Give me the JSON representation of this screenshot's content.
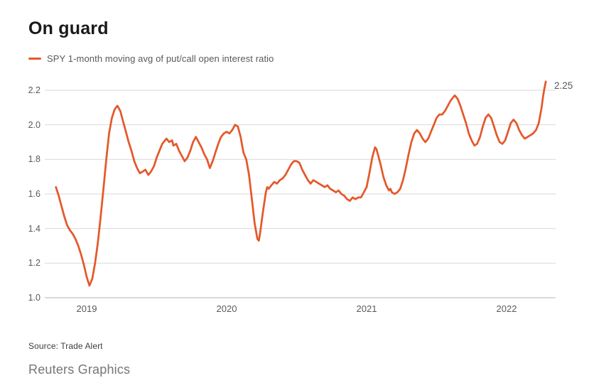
{
  "chart": {
    "title": "On guard",
    "legend": "SPY 1-month moving avg of put/call open interest ratio",
    "end_label": "2.25",
    "source": "Source: Trade Alert",
    "credit": "Reuters Graphics",
    "line_color": "#e4592b",
    "grid_color": "#d9d9d9",
    "axis_color": "#b5b5b5",
    "tick_color": "#595959"
  },
  "chart_data": {
    "type": "line",
    "title": "On guard",
    "series_name": "SPY 1-month moving avg of put/call open interest ratio",
    "xlabel": "",
    "ylabel": "",
    "x_ticks": [
      2019,
      2020,
      2021,
      2022
    ],
    "y_ticks": [
      2.2,
      2.0,
      1.8,
      1.6,
      1.4,
      1.2,
      1.0
    ],
    "ylim": [
      1.0,
      2.2
    ],
    "xlim": [
      2018.78,
      2022.35
    ],
    "grid": "horizontal",
    "legend_position": "top-left",
    "last_value_annotation": 2.25,
    "points": [
      [
        2018.78,
        1.64
      ],
      [
        2018.8,
        1.59
      ],
      [
        2018.82,
        1.53
      ],
      [
        2018.84,
        1.47
      ],
      [
        2018.86,
        1.42
      ],
      [
        2018.88,
        1.39
      ],
      [
        2018.9,
        1.37
      ],
      [
        2018.92,
        1.34
      ],
      [
        2018.94,
        1.3
      ],
      [
        2018.96,
        1.25
      ],
      [
        2018.98,
        1.19
      ],
      [
        2019.0,
        1.12
      ],
      [
        2019.02,
        1.07
      ],
      [
        2019.04,
        1.11
      ],
      [
        2019.06,
        1.2
      ],
      [
        2019.08,
        1.32
      ],
      [
        2019.1,
        1.47
      ],
      [
        2019.12,
        1.63
      ],
      [
        2019.14,
        1.8
      ],
      [
        2019.16,
        1.95
      ],
      [
        2019.18,
        2.04
      ],
      [
        2019.2,
        2.09
      ],
      [
        2019.22,
        2.11
      ],
      [
        2019.24,
        2.08
      ],
      [
        2019.26,
        2.02
      ],
      [
        2019.28,
        1.96
      ],
      [
        2019.3,
        1.9
      ],
      [
        2019.32,
        1.85
      ],
      [
        2019.34,
        1.79
      ],
      [
        2019.36,
        1.75
      ],
      [
        2019.38,
        1.72
      ],
      [
        2019.4,
        1.73
      ],
      [
        2019.42,
        1.74
      ],
      [
        2019.44,
        1.71
      ],
      [
        2019.46,
        1.73
      ],
      [
        2019.48,
        1.76
      ],
      [
        2019.5,
        1.81
      ],
      [
        2019.52,
        1.85
      ],
      [
        2019.54,
        1.89
      ],
      [
        2019.56,
        1.91
      ],
      [
        2019.57,
        1.92
      ],
      [
        2019.59,
        1.9
      ],
      [
        2019.61,
        1.91
      ],
      [
        2019.62,
        1.88
      ],
      [
        2019.64,
        1.89
      ],
      [
        2019.66,
        1.85
      ],
      [
        2019.68,
        1.82
      ],
      [
        2019.7,
        1.79
      ],
      [
        2019.72,
        1.81
      ],
      [
        2019.74,
        1.85
      ],
      [
        2019.76,
        1.9
      ],
      [
        2019.78,
        1.93
      ],
      [
        2019.8,
        1.9
      ],
      [
        2019.82,
        1.87
      ],
      [
        2019.84,
        1.83
      ],
      [
        2019.86,
        1.8
      ],
      [
        2019.88,
        1.75
      ],
      [
        2019.9,
        1.79
      ],
      [
        2019.92,
        1.84
      ],
      [
        2019.94,
        1.89
      ],
      [
        2019.96,
        1.93
      ],
      [
        2019.98,
        1.95
      ],
      [
        2020.0,
        1.96
      ],
      [
        2020.02,
        1.95
      ],
      [
        2020.04,
        1.97
      ],
      [
        2020.06,
        2.0
      ],
      [
        2020.08,
        1.99
      ],
      [
        2020.1,
        1.93
      ],
      [
        2020.12,
        1.84
      ],
      [
        2020.14,
        1.8
      ],
      [
        2020.16,
        1.71
      ],
      [
        2020.18,
        1.57
      ],
      [
        2020.2,
        1.43
      ],
      [
        2020.22,
        1.34
      ],
      [
        2020.23,
        1.33
      ],
      [
        2020.24,
        1.38
      ],
      [
        2020.26,
        1.5
      ],
      [
        2020.28,
        1.61
      ],
      [
        2020.29,
        1.64
      ],
      [
        2020.3,
        1.63
      ],
      [
        2020.32,
        1.65
      ],
      [
        2020.34,
        1.67
      ],
      [
        2020.36,
        1.66
      ],
      [
        2020.38,
        1.68
      ],
      [
        2020.4,
        1.69
      ],
      [
        2020.42,
        1.71
      ],
      [
        2020.44,
        1.74
      ],
      [
        2020.46,
        1.77
      ],
      [
        2020.48,
        1.79
      ],
      [
        2020.5,
        1.79
      ],
      [
        2020.52,
        1.78
      ],
      [
        2020.54,
        1.74
      ],
      [
        2020.56,
        1.71
      ],
      [
        2020.58,
        1.68
      ],
      [
        2020.6,
        1.66
      ],
      [
        2020.62,
        1.68
      ],
      [
        2020.64,
        1.67
      ],
      [
        2020.66,
        1.66
      ],
      [
        2020.68,
        1.65
      ],
      [
        2020.7,
        1.64
      ],
      [
        2020.72,
        1.65
      ],
      [
        2020.74,
        1.63
      ],
      [
        2020.76,
        1.62
      ],
      [
        2020.78,
        1.61
      ],
      [
        2020.8,
        1.62
      ],
      [
        2020.82,
        1.6
      ],
      [
        2020.84,
        1.59
      ],
      [
        2020.86,
        1.57
      ],
      [
        2020.88,
        1.56
      ],
      [
        2020.9,
        1.58
      ],
      [
        2020.92,
        1.57
      ],
      [
        2020.94,
        1.58
      ],
      [
        2020.96,
        1.58
      ],
      [
        2020.98,
        1.61
      ],
      [
        2021.0,
        1.64
      ],
      [
        2021.02,
        1.72
      ],
      [
        2021.04,
        1.81
      ],
      [
        2021.06,
        1.87
      ],
      [
        2021.07,
        1.86
      ],
      [
        2021.08,
        1.83
      ],
      [
        2021.1,
        1.77
      ],
      [
        2021.12,
        1.7
      ],
      [
        2021.14,
        1.65
      ],
      [
        2021.16,
        1.62
      ],
      [
        2021.17,
        1.63
      ],
      [
        2021.18,
        1.61
      ],
      [
        2021.2,
        1.6
      ],
      [
        2021.22,
        1.61
      ],
      [
        2021.24,
        1.63
      ],
      [
        2021.26,
        1.68
      ],
      [
        2021.28,
        1.75
      ],
      [
        2021.3,
        1.83
      ],
      [
        2021.32,
        1.9
      ],
      [
        2021.34,
        1.95
      ],
      [
        2021.36,
        1.97
      ],
      [
        2021.38,
        1.95
      ],
      [
        2021.4,
        1.92
      ],
      [
        2021.42,
        1.9
      ],
      [
        2021.44,
        1.92
      ],
      [
        2021.46,
        1.96
      ],
      [
        2021.48,
        2.0
      ],
      [
        2021.5,
        2.04
      ],
      [
        2021.52,
        2.06
      ],
      [
        2021.54,
        2.06
      ],
      [
        2021.56,
        2.08
      ],
      [
        2021.58,
        2.11
      ],
      [
        2021.6,
        2.14
      ],
      [
        2021.62,
        2.16
      ],
      [
        2021.63,
        2.17
      ],
      [
        2021.65,
        2.15
      ],
      [
        2021.67,
        2.11
      ],
      [
        2021.69,
        2.06
      ],
      [
        2021.71,
        2.01
      ],
      [
        2021.73,
        1.95
      ],
      [
        2021.75,
        1.91
      ],
      [
        2021.77,
        1.88
      ],
      [
        2021.79,
        1.89
      ],
      [
        2021.81,
        1.93
      ],
      [
        2021.83,
        1.99
      ],
      [
        2021.85,
        2.04
      ],
      [
        2021.87,
        2.06
      ],
      [
        2021.89,
        2.04
      ],
      [
        2021.91,
        1.99
      ],
      [
        2021.93,
        1.94
      ],
      [
        2021.95,
        1.9
      ],
      [
        2021.97,
        1.89
      ],
      [
        2021.99,
        1.91
      ],
      [
        2022.01,
        1.96
      ],
      [
        2022.03,
        2.01
      ],
      [
        2022.05,
        2.03
      ],
      [
        2022.07,
        2.01
      ],
      [
        2022.09,
        1.97
      ],
      [
        2022.11,
        1.94
      ],
      [
        2022.13,
        1.92
      ],
      [
        2022.15,
        1.93
      ],
      [
        2022.17,
        1.94
      ],
      [
        2022.19,
        1.95
      ],
      [
        2022.21,
        1.97
      ],
      [
        2022.23,
        2.01
      ],
      [
        2022.25,
        2.1
      ],
      [
        2022.26,
        2.16
      ],
      [
        2022.27,
        2.21
      ],
      [
        2022.28,
        2.25
      ]
    ]
  }
}
